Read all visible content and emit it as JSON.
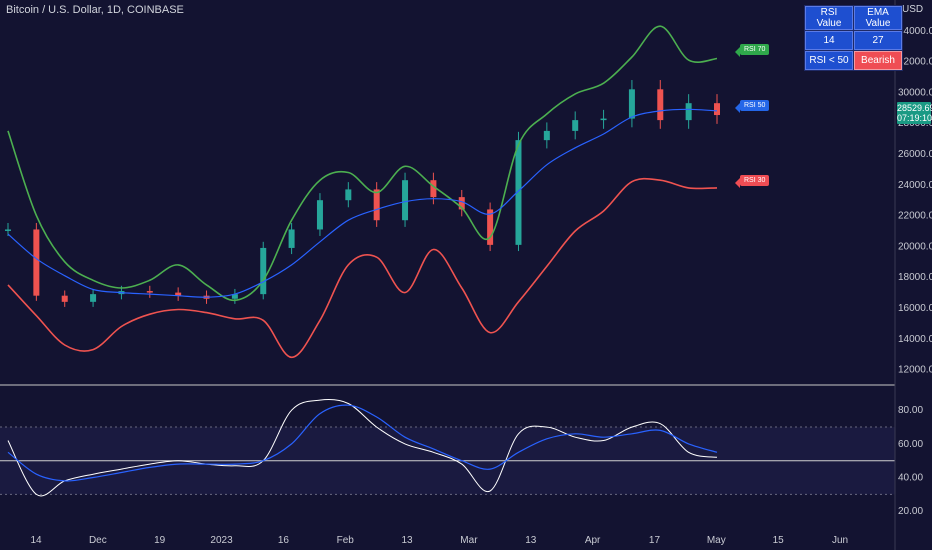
{
  "header": {
    "title": "Bitcoin / U.S. Dollar, 1D, COINBASE",
    "currency": "USD"
  },
  "stats_table": {
    "rsi_header": "RSI Value",
    "ema_header": "EMA Value",
    "rsi_value": "14",
    "ema_value": "27",
    "condition": "RSI < 50",
    "signal": "Bearish"
  },
  "band_labels": {
    "upper": "RSI 70",
    "middle": "RSI 50",
    "lower": "RSI 30"
  },
  "price_tag": {
    "price": "28529.69",
    "countdown": "07:19:10"
  },
  "colors": {
    "background": "#131331",
    "up": "#26a69a",
    "down": "#ef5350",
    "upper_band": "#4caf50",
    "lower_band": "#ef5350",
    "ema": "#2962ff",
    "rsi": "#ffffff",
    "rsi_ema": "#2962ff"
  },
  "chart_data": [
    {
      "type": "line",
      "subtype": "candlestick",
      "x": [
        "2022-11-07",
        "2022-11-14",
        "2022-11-21",
        "2022-11-28",
        "2022-12-05",
        "2022-12-12",
        "2022-12-19",
        "2022-12-26",
        "2023-01-02",
        "2023-01-09",
        "2023-01-16",
        "2023-01-23",
        "2023-01-30",
        "2023-02-06",
        "2023-02-13",
        "2023-02-20",
        "2023-02-27",
        "2023-03-06",
        "2023-03-13",
        "2023-03-20",
        "2023-03-27",
        "2023-04-03",
        "2023-04-10",
        "2023-04-17",
        "2023-04-24",
        "2023-05-01"
      ],
      "ylim": [
        11000,
        36000
      ],
      "yticks": [
        "12000.00",
        "14000.00",
        "16000.00",
        "18000.00",
        "20000.00",
        "22000.00",
        "24000.00",
        "26000.00",
        "28000.00",
        "30000.00",
        "32000.00",
        "34000.00"
      ],
      "xticks": [
        "14",
        "Dec",
        "19",
        "2023",
        "16",
        "Feb",
        "13",
        "Mar",
        "13",
        "Apr",
        "17",
        "May",
        "15",
        "Jun"
      ],
      "series": [
        {
          "name": "",
          "values": [
            21100,
            16800,
            16400,
            16900,
            17100,
            17000,
            16800,
            16600,
            16900,
            19900,
            21100,
            23000,
            23700,
            21700,
            24300,
            23200,
            22400,
            20100,
            26900,
            27500,
            28200,
            28300,
            30200,
            28200,
            29300,
            28530
          ]
        },
        {
          "name": "",
          "values": [
            27500,
            22000,
            19000,
            17800,
            17300,
            17800,
            18800,
            17500,
            16500,
            17800,
            21700,
            24300,
            24800,
            23500,
            25200,
            23900,
            22500,
            20600,
            26600,
            28600,
            29900,
            30600,
            32300,
            34300,
            32100,
            32200
          ]
        },
        {
          "name": "",
          "values": [
            20800,
            19200,
            18100,
            17200,
            17000,
            16900,
            16800,
            16700,
            16900,
            17700,
            18800,
            20300,
            21700,
            22400,
            22900,
            23100,
            22900,
            22100,
            23600,
            25300,
            26400,
            27300,
            28400,
            28800,
            28900,
            28800
          ]
        },
        {
          "name": "",
          "values": [
            17500,
            15500,
            13600,
            13300,
            14800,
            15600,
            15900,
            15700,
            15300,
            15200,
            12800,
            15200,
            18800,
            19300,
            17000,
            19800,
            17300,
            14400,
            16400,
            18700,
            21000,
            22300,
            24200,
            24300,
            23800,
            23800
          ]
        }
      ]
    },
    {
      "type": "line",
      "ylim": [
        10,
        95
      ],
      "yticks": [
        "20.00",
        "40.00",
        "60.00",
        "80.00"
      ],
      "series": [
        {
          "name": "",
          "values": [
            62,
            30,
            38,
            42,
            45,
            48,
            50,
            48,
            47,
            50,
            80,
            86,
            84,
            70,
            60,
            55,
            48,
            32,
            66,
            70,
            64,
            62,
            70,
            72,
            55,
            52
          ]
        },
        {
          "name": "",
          "values": [
            55,
            42,
            38,
            40,
            43,
            46,
            48,
            48,
            48,
            50,
            60,
            78,
            83,
            76,
            64,
            57,
            50,
            45,
            55,
            63,
            66,
            64,
            66,
            68,
            60,
            55
          ]
        }
      ],
      "hlines": [
        30,
        50,
        70
      ]
    }
  ]
}
